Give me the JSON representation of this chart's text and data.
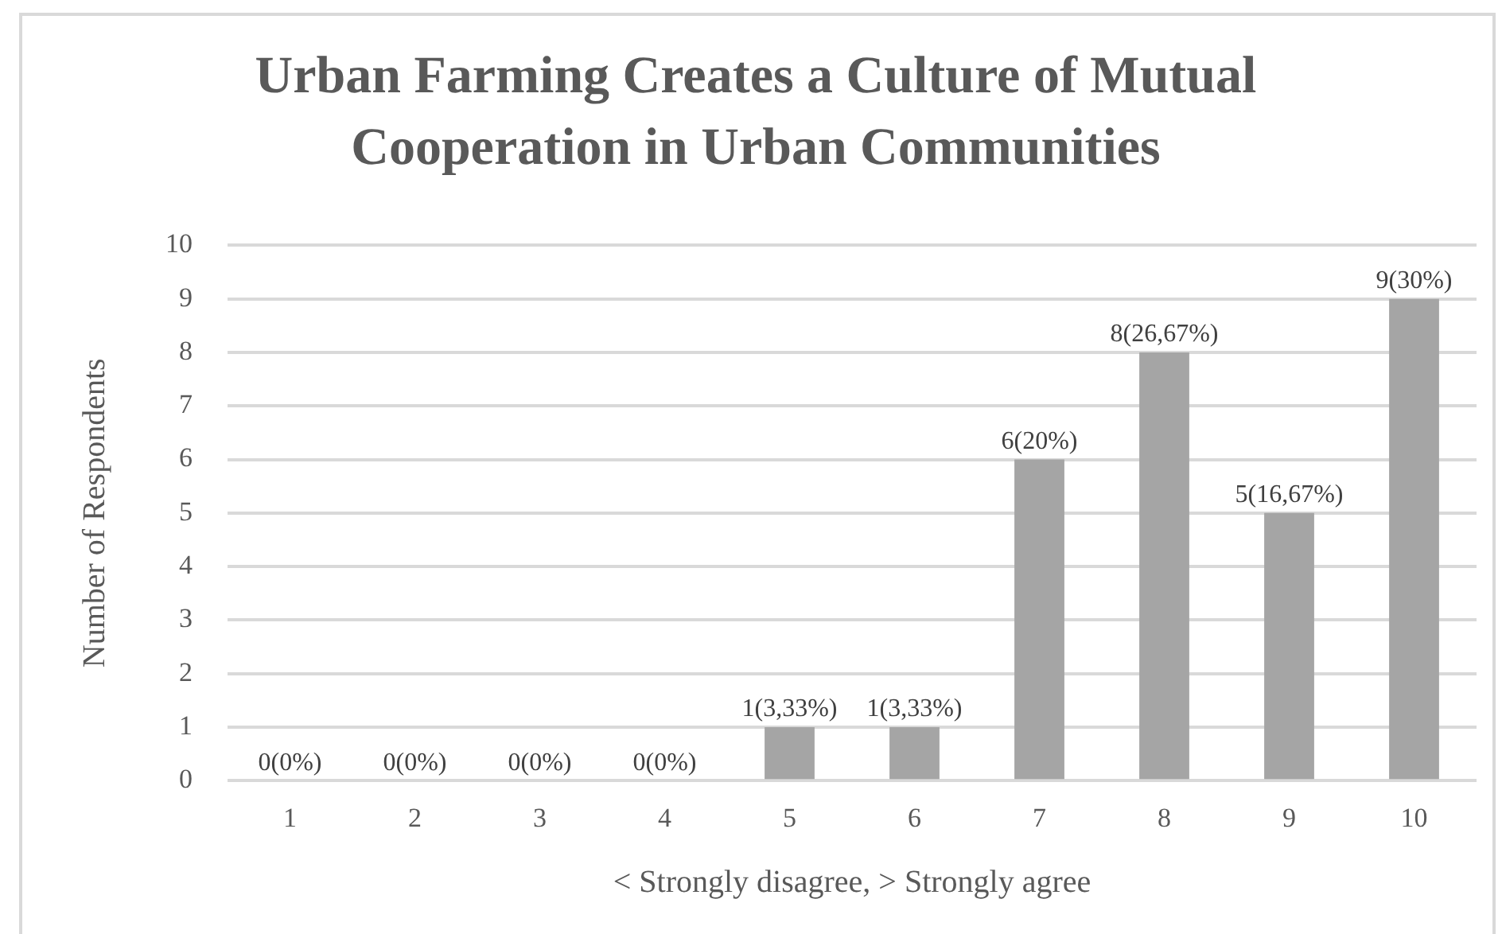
{
  "chart_data": {
    "type": "bar",
    "title": "Urban Farming Creates a Culture of Mutual Cooperation in Urban Communities",
    "xlabel": "< Strongly disagree, > Strongly agree",
    "ylabel": "Number of Respondents",
    "categories": [
      "1",
      "2",
      "3",
      "4",
      "5",
      "6",
      "7",
      "8",
      "9",
      "10"
    ],
    "values": [
      0,
      0,
      0,
      0,
      1,
      1,
      6,
      8,
      5,
      9
    ],
    "color": "#a5a5a5",
    "value_labels": [
      "0(0%)",
      "0(0%)",
      "0(0%)",
      "0(0%)",
      "1(3,33%)",
      "1(3,33%)",
      "6(20%)",
      "8(26,67%)",
      "5(16,67%)",
      "9(30%)"
    ],
    "ylim": [
      0,
      10
    ],
    "yticks": [
      0,
      1,
      2,
      3,
      4,
      5,
      6,
      7,
      8,
      9,
      10
    ],
    "grid": "y",
    "legend": false
  }
}
